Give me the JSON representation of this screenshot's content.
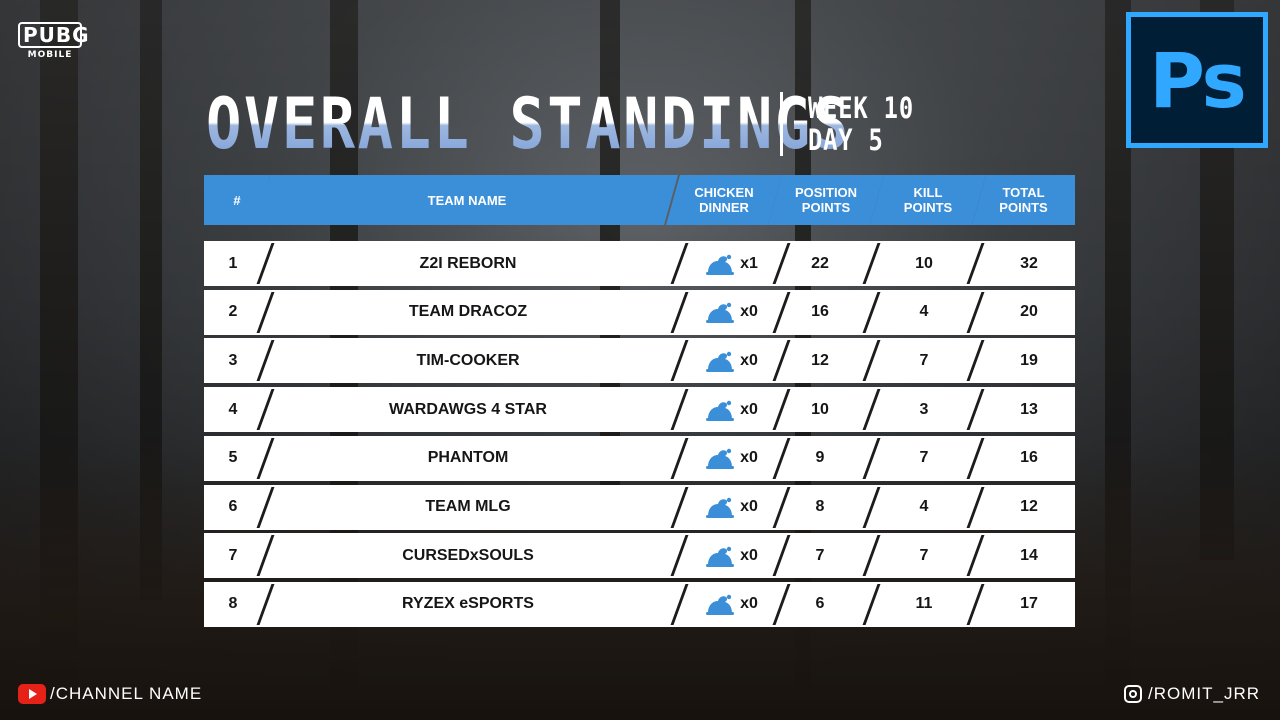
{
  "brand": {
    "logo_main": "PUBG",
    "logo_sub": "MOBILE",
    "ps_label": "Ps"
  },
  "header": {
    "title": "OVERALL STANDINGS",
    "week": "WEEK 10",
    "day": "DAY 5"
  },
  "columns": [
    "#",
    "TEAM NAME",
    "CHICKEN\nDINNER",
    "POSITION\nPOINTS",
    "KILL\nPOINTS",
    "TOTAL\nPOINTS"
  ],
  "rows": [
    {
      "rank": "1",
      "team": "Z2I REBORN",
      "chicken": "x1",
      "position": "22",
      "kill": "10",
      "total": "32"
    },
    {
      "rank": "2",
      "team": "TEAM DRACOZ",
      "chicken": "x0",
      "position": "16",
      "kill": "4",
      "total": "20"
    },
    {
      "rank": "3",
      "team": "TIM-COOKER",
      "chicken": "x0",
      "position": "12",
      "kill": "7",
      "total": "19"
    },
    {
      "rank": "4",
      "team": "WARDAWGS 4 STAR",
      "chicken": "x0",
      "position": "10",
      "kill": "3",
      "total": "13"
    },
    {
      "rank": "5",
      "team": "PHANTOM",
      "chicken": "x0",
      "position": "9",
      "kill": "7",
      "total": "16"
    },
    {
      "rank": "6",
      "team": "TEAM MLG",
      "chicken": "x0",
      "position": "8",
      "kill": "4",
      "total": "12"
    },
    {
      "rank": "7",
      "team": "CURSEDxSOULS",
      "chicken": "x0",
      "position": "7",
      "kill": "7",
      "total": "14"
    },
    {
      "rank": "8",
      "team": "RYZEX eSPORTS",
      "chicken": "x0",
      "position": "6",
      "kill": "11",
      "total": "17"
    }
  ],
  "footer": {
    "channel": "/CHANNEL NAME",
    "instagram": "/ROMIT_JRR"
  },
  "colors": {
    "accent": "#3b8fd9",
    "ps_blue": "#31a8ff",
    "ps_bg": "#001e36",
    "youtube_red": "#e62117"
  },
  "icons": {
    "chicken": "chicken-icon",
    "youtube": "youtube-icon",
    "instagram": "instagram-icon"
  }
}
